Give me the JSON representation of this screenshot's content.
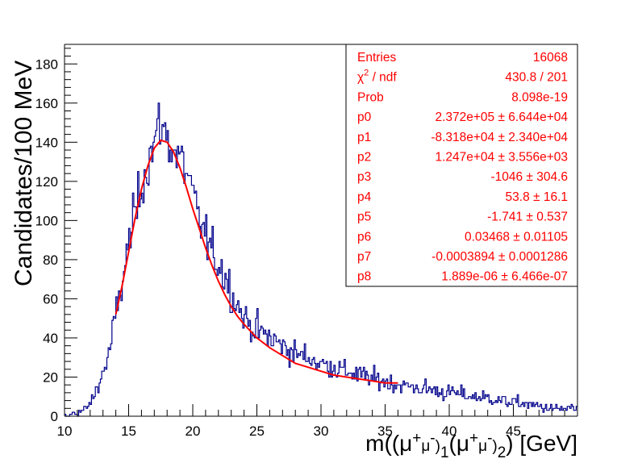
{
  "chart_data": {
    "type": "histogram",
    "xlabel": "m((μ+μ-)1(μ+μ-)2) [GeV]",
    "ylabel": "Candidates/100 MeV",
    "xlim": [
      10,
      50
    ],
    "ylim": [
      0,
      190
    ],
    "bin_width": 0.1,
    "x_ticks": [
      "10",
      "15",
      "20",
      "25",
      "30",
      "35",
      "40",
      "45"
    ],
    "y_ticks": [
      "0",
      "20",
      "40",
      "60",
      "80",
      "100",
      "120",
      "140",
      "160",
      "180"
    ],
    "histogram_color": "#00008b",
    "fit_color": "#ff0000",
    "hist_summary": [
      {
        "x": 10.5,
        "y": 1
      },
      {
        "x": 11.0,
        "y": 2
      },
      {
        "x": 11.5,
        "y": 3
      },
      {
        "x": 12.0,
        "y": 6
      },
      {
        "x": 12.5,
        "y": 14
      },
      {
        "x": 13.0,
        "y": 22
      },
      {
        "x": 13.5,
        "y": 32
      },
      {
        "x": 14.0,
        "y": 52
      },
      {
        "x": 14.5,
        "y": 68
      },
      {
        "x": 15.0,
        "y": 88
      },
      {
        "x": 15.5,
        "y": 104
      },
      {
        "x": 16.0,
        "y": 118
      },
      {
        "x": 16.5,
        "y": 130
      },
      {
        "x": 17.0,
        "y": 140
      },
      {
        "x": 17.5,
        "y": 150
      },
      {
        "x": 18.0,
        "y": 142
      },
      {
        "x": 18.5,
        "y": 136
      },
      {
        "x": 19.0,
        "y": 132
      },
      {
        "x": 19.5,
        "y": 125
      },
      {
        "x": 20.0,
        "y": 112
      },
      {
        "x": 20.5,
        "y": 100
      },
      {
        "x": 21.0,
        "y": 92
      },
      {
        "x": 21.5,
        "y": 84
      },
      {
        "x": 22.0,
        "y": 78
      },
      {
        "x": 22.5,
        "y": 72
      },
      {
        "x": 23.0,
        "y": 64
      },
      {
        "x": 23.5,
        "y": 57
      },
      {
        "x": 24.0,
        "y": 50
      },
      {
        "x": 25.0,
        "y": 44
      },
      {
        "x": 26.0,
        "y": 40
      },
      {
        "x": 27.0,
        "y": 36
      },
      {
        "x": 28.0,
        "y": 32
      },
      {
        "x": 29.0,
        "y": 30
      },
      {
        "x": 30.0,
        "y": 27
      },
      {
        "x": 31.0,
        "y": 25
      },
      {
        "x": 32.0,
        "y": 23
      },
      {
        "x": 33.0,
        "y": 21
      },
      {
        "x": 34.0,
        "y": 19
      },
      {
        "x": 35.0,
        "y": 18
      },
      {
        "x": 36.0,
        "y": 16
      },
      {
        "x": 37.0,
        "y": 15
      },
      {
        "x": 38.0,
        "y": 14
      },
      {
        "x": 39.0,
        "y": 13
      },
      {
        "x": 40.0,
        "y": 12
      },
      {
        "x": 41.0,
        "y": 11
      },
      {
        "x": 42.0,
        "y": 10
      },
      {
        "x": 43.0,
        "y": 9
      },
      {
        "x": 44.0,
        "y": 8
      },
      {
        "x": 45.0,
        "y": 7
      },
      {
        "x": 46.0,
        "y": 6
      },
      {
        "x": 47.0,
        "y": 5
      },
      {
        "x": 48.0,
        "y": 4
      },
      {
        "x": 49.0,
        "y": 4
      },
      {
        "x": 49.9,
        "y": 4
      }
    ],
    "fit_curve": [
      {
        "x": 14.0,
        "y": 52
      },
      {
        "x": 14.5,
        "y": 67
      },
      {
        "x": 15.0,
        "y": 84
      },
      {
        "x": 15.5,
        "y": 101
      },
      {
        "x": 16.0,
        "y": 116
      },
      {
        "x": 16.5,
        "y": 128
      },
      {
        "x": 17.0,
        "y": 137
      },
      {
        "x": 17.5,
        "y": 141
      },
      {
        "x": 18.0,
        "y": 140
      },
      {
        "x": 18.5,
        "y": 135
      },
      {
        "x": 19.0,
        "y": 127
      },
      {
        "x": 19.5,
        "y": 117
      },
      {
        "x": 20.0,
        "y": 106
      },
      {
        "x": 20.5,
        "y": 96
      },
      {
        "x": 21.0,
        "y": 86
      },
      {
        "x": 21.5,
        "y": 77
      },
      {
        "x": 22.0,
        "y": 69
      },
      {
        "x": 22.5,
        "y": 62
      },
      {
        "x": 23.0,
        "y": 56
      },
      {
        "x": 23.5,
        "y": 51
      },
      {
        "x": 24.0,
        "y": 47
      },
      {
        "x": 25.0,
        "y": 40
      },
      {
        "x": 26.0,
        "y": 35
      },
      {
        "x": 27.0,
        "y": 31
      },
      {
        "x": 28.0,
        "y": 27
      },
      {
        "x": 29.0,
        "y": 25
      },
      {
        "x": 30.0,
        "y": 23
      },
      {
        "x": 31.0,
        "y": 21
      },
      {
        "x": 32.0,
        "y": 20
      },
      {
        "x": 33.0,
        "y": 19
      },
      {
        "x": 34.0,
        "y": 18
      },
      {
        "x": 35.0,
        "y": 17
      },
      {
        "x": 36.0,
        "y": 17
      }
    ],
    "stats_box": [
      {
        "label": "Entries",
        "value": "16068"
      },
      {
        "label": "χ2 / ndf",
        "value": "430.8 / 201"
      },
      {
        "label": "Prob",
        "value": "8.098e-19"
      },
      {
        "label": "p0",
        "value": "2.372e+05 ± 6.644e+04"
      },
      {
        "label": "p1",
        "value": "-8.318e+04 ± 2.340e+04"
      },
      {
        "label": "p2",
        "value": "1.247e+04 ± 3.556e+03"
      },
      {
        "label": "p3",
        "value": "-1046 ± 304.6"
      },
      {
        "label": "p4",
        "value": "53.8 ± 16.1"
      },
      {
        "label": "p5",
        "value": "-1.741 ± 0.537"
      },
      {
        "label": "p6",
        "value": "0.03468 ± 0.01105"
      },
      {
        "label": "p7",
        "value": "-0.0003894 ± 0.0001286"
      },
      {
        "label": "p8",
        "value": "1.889e-06 ± 6.466e-07"
      }
    ]
  }
}
